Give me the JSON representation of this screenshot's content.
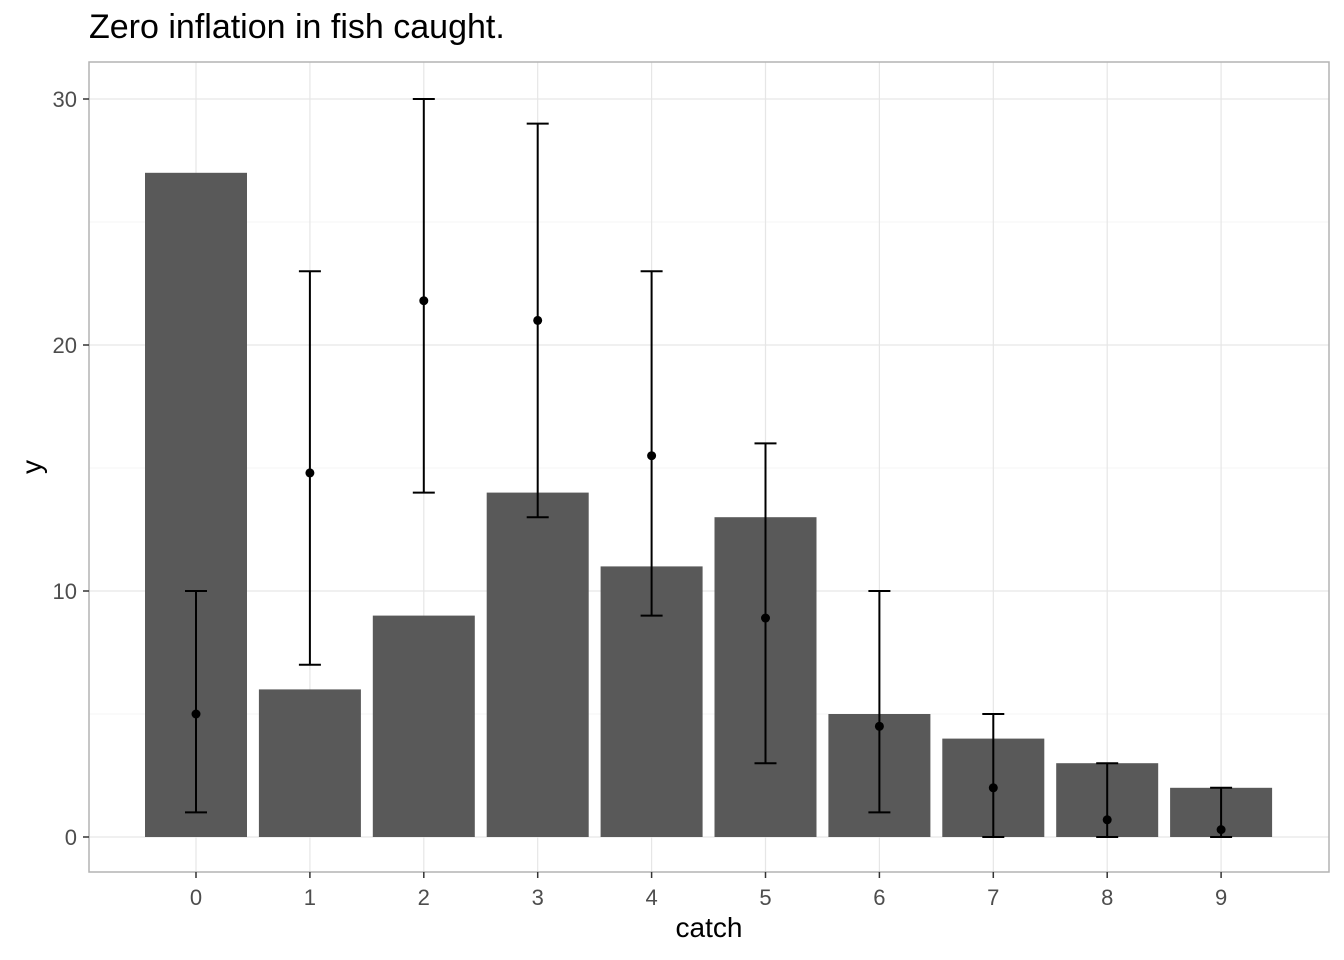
{
  "chart_data": {
    "type": "bar",
    "title": "Zero inflation in fish caught.",
    "xlabel": "catch",
    "ylabel": "y",
    "categories": [
      "0",
      "1",
      "2",
      "3",
      "4",
      "5",
      "6",
      "7",
      "8",
      "9"
    ],
    "bars": {
      "values": [
        27,
        6,
        9,
        14,
        11,
        13,
        5,
        4,
        3,
        2
      ],
      "color": "#595959"
    },
    "points": {
      "values": [
        5,
        14.8,
        21.8,
        21,
        15.5,
        8.9,
        4.5,
        2,
        0.7,
        0.3
      ],
      "lower": [
        1,
        7,
        14,
        13,
        9,
        3,
        1,
        0,
        0,
        0
      ],
      "upper": [
        10,
        23,
        30,
        29,
        23,
        16,
        10,
        5,
        3,
        2
      ],
      "color": "#000000"
    },
    "y_ticks": [
      0,
      10,
      20,
      30
    ],
    "ylim": [
      -1.4,
      31.5
    ],
    "grid": true,
    "panel_border": "#b3b3b3",
    "grid_color": "#e6e6e6"
  }
}
